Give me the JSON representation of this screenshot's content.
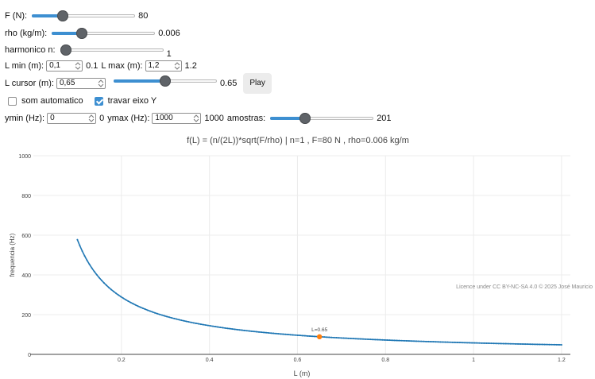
{
  "controls": {
    "F": {
      "label": "F (N):",
      "value": "80",
      "fraction": 0.3
    },
    "rho": {
      "label": "rho (kg/m):",
      "value": "0.006",
      "fraction": 0.29
    },
    "harmonico": {
      "label": "harmonico n:",
      "value": "1",
      "fraction": 0.06
    },
    "L_min": {
      "label": "L min (m):",
      "input": "0,1",
      "value": "0.1"
    },
    "L_max": {
      "label": "L max (m):",
      "input": "1,2",
      "value": "1.2"
    },
    "L_cursor": {
      "label": "L cursor (m):",
      "input": "0,65",
      "value": "0.65",
      "fraction": 0.5
    },
    "play_label": "Play",
    "som_automatico": {
      "label": "som automatico",
      "checked": false
    },
    "travar_eixo": {
      "label": "travar eixo Y",
      "checked": true
    },
    "ymin": {
      "label": "ymin (Hz):",
      "input": "0",
      "value": "0"
    },
    "ymax": {
      "label": "ymax (Hz):",
      "input": "1000",
      "value": "1000"
    },
    "amostras": {
      "label": "amostras:",
      "value": "201",
      "fraction": 0.34
    }
  },
  "chart_data": {
    "type": "line",
    "title": "f(L) = (n/(2L))*sqrt(F/rho)   |   n=1 ,  F=80 N ,  rho=0.006 kg/m",
    "xlabel": "L (m)",
    "ylabel": "frequencia (Hz)",
    "xlim": [
      0.0,
      1.22
    ],
    "ylim": [
      0,
      1000
    ],
    "xticks": [
      "0.2",
      "0.4",
      "0.6",
      "0.8",
      "1",
      "1.2"
    ],
    "xtick_values": [
      0.2,
      0.4,
      0.6,
      0.8,
      1.0,
      1.2
    ],
    "yticks": [
      "0",
      "200",
      "400",
      "600",
      "800",
      "1000"
    ],
    "ytick_values": [
      0,
      200,
      400,
      600,
      800,
      1000
    ],
    "grid": true,
    "series": [
      {
        "n": 1,
        "F": 80,
        "rho": 0.006,
        "L_min": 0.1,
        "L_max": 1.2,
        "samples": 201,
        "color": "#1f77b4"
      }
    ],
    "cursor": {
      "x": 0.65,
      "y": 88.8,
      "label": "L=0.65",
      "color": "#ff7f0e"
    },
    "watermark": "Licence under CC BY-NC-SA 4.0 © 2025 José Mauricio"
  }
}
